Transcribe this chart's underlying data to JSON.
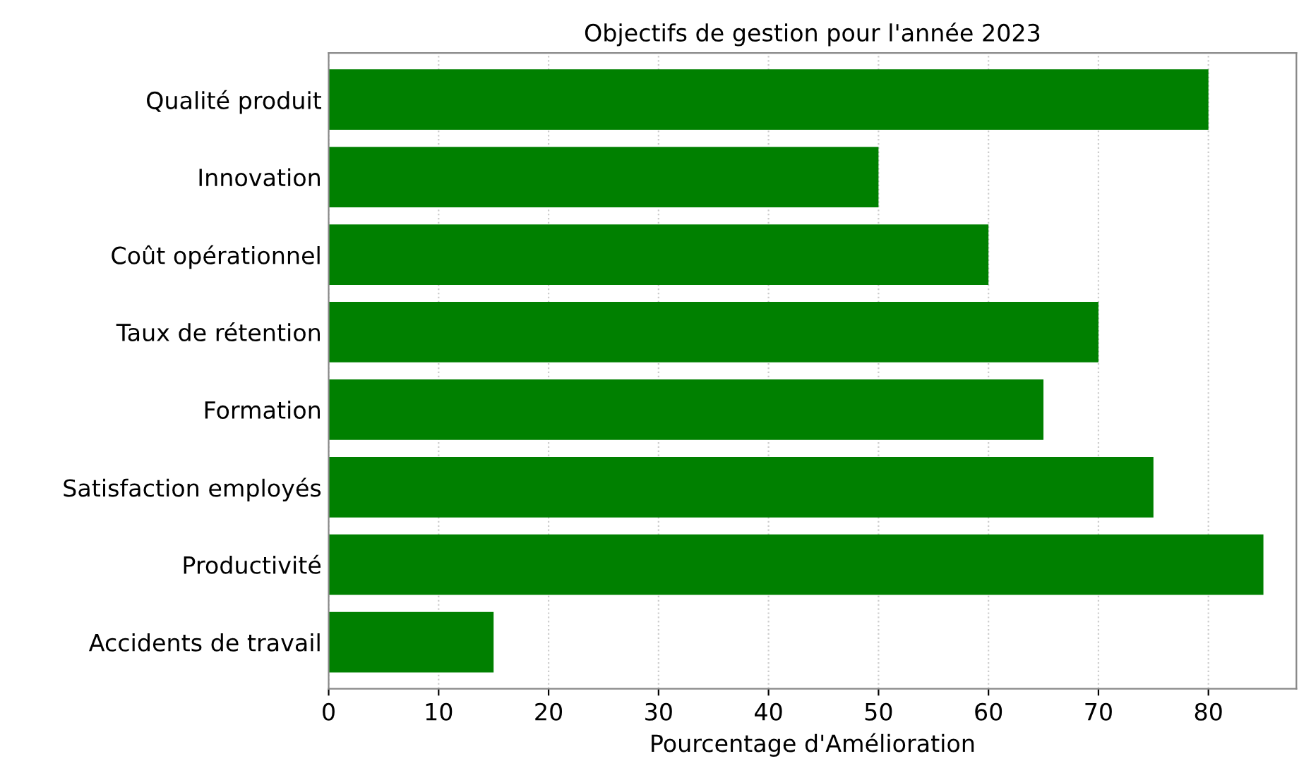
{
  "chart_data": {
    "type": "bar",
    "orientation": "horizontal",
    "title": "Objectifs de gestion pour l'année 2023",
    "xlabel": "Pourcentage d'Amélioration",
    "categories": [
      "Qualité produit",
      "Innovation",
      "Coût opérationnel",
      "Taux de rétention",
      "Formation",
      "Satisfaction employés",
      "Productivité",
      "Accidents de travail"
    ],
    "values": [
      80,
      50,
      60,
      70,
      65,
      75,
      85,
      15
    ],
    "color": "#008000",
    "xlim": [
      0,
      88
    ],
    "xticks": [
      0,
      10,
      20,
      30,
      40,
      50,
      60,
      70,
      80
    ],
    "grid": "x",
    "line_style": "dotted"
  }
}
